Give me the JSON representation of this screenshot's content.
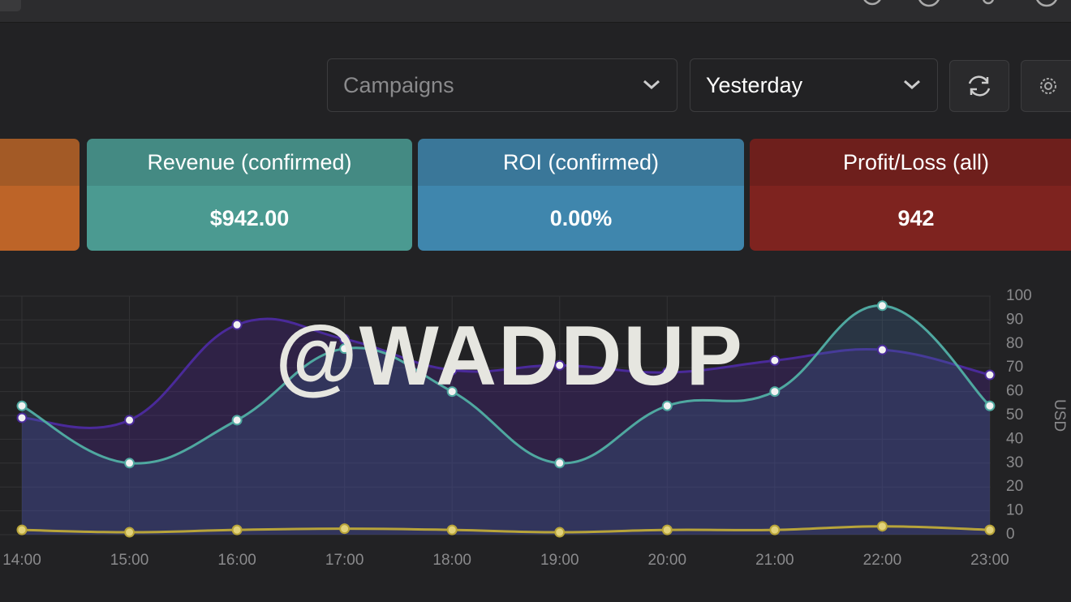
{
  "toolbar": {
    "campaign_select": "Campaigns",
    "date_select": "Yesterday"
  },
  "cards": [
    {
      "title": "Revenue (confirmed)",
      "value": "$942.00"
    },
    {
      "title": "ROI (confirmed)",
      "value": "0.00%"
    },
    {
      "title": "Profit/Loss (all)",
      "value": "942"
    }
  ],
  "chart_data": {
    "type": "line",
    "categories": [
      "14:00",
      "15:00",
      "16:00",
      "17:00",
      "18:00",
      "19:00",
      "20:00",
      "21:00",
      "22:00",
      "23:00"
    ],
    "series": [
      {
        "color": "#4a2a9a",
        "values": [
          49,
          48,
          88,
          82,
          69,
          71,
          68,
          73,
          77.5,
          67
        ]
      },
      {
        "color": "#4fa8a0",
        "values": [
          54,
          30,
          48,
          78,
          60,
          30,
          54,
          60,
          96,
          54
        ]
      },
      {
        "color": "#b8a43a",
        "values": [
          2,
          1,
          2,
          2.5,
          2,
          1,
          2,
          2,
          3.5,
          2
        ]
      }
    ],
    "ylim": [
      0,
      100
    ],
    "yticks": [
      0,
      10,
      20,
      30,
      40,
      50,
      60,
      70,
      80,
      90,
      100
    ],
    "y_label": "USD",
    "grid": true,
    "area": true
  },
  "watermark": "@WADDUP"
}
